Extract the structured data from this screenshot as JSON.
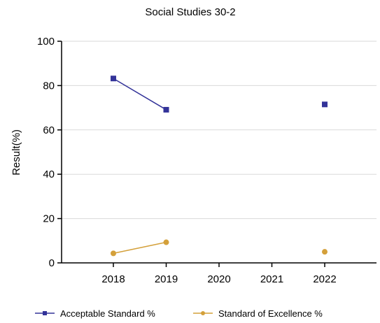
{
  "chart_data": {
    "type": "line",
    "title": "Social Studies 30-2",
    "xlabel": "",
    "ylabel": "Result(%)",
    "categories": [
      "2018",
      "2019",
      "2020",
      "2021",
      "2022"
    ],
    "ylim": [
      0,
      100
    ],
    "yticks": [
      0,
      20,
      40,
      60,
      80,
      100
    ],
    "grid": "horizontal",
    "legend_position": "bottom",
    "series": [
      {
        "name": "Acceptable Standard %",
        "color": "#333399",
        "marker": "square",
        "values": [
          83.2,
          69.1,
          null,
          null,
          71.5
        ]
      },
      {
        "name": "Standard of Excellence %",
        "color": "#D4A03A",
        "marker": "circle",
        "values": [
          4.3,
          9.3,
          null,
          null,
          5.0
        ]
      }
    ]
  }
}
